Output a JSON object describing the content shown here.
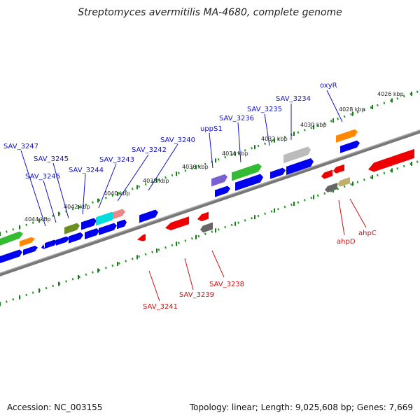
{
  "header": {
    "title": "Streptomyces avermitilis MA-4680, complete genome"
  },
  "footer": {
    "accession": "Accession: NC_003155",
    "summary": "Topology: linear; Length: 9,025,608 bp; Genes: 7,669"
  },
  "scale_labels": [
    "4026 kbp",
    "4028 kbp",
    "4030 kbp",
    "4032 kbp",
    "4034 kbp",
    "4036 kbp",
    "4038 kbp",
    "4040 kbp",
    "4042 kbp",
    "4044 kbp"
  ],
  "forward_gene_labels": [
    "SAV_3247",
    "SAV_3246",
    "SAV_3245",
    "SAV_3244",
    "SAV_3243",
    "SAV_3242",
    "SAV_3240",
    "uppS1",
    "SAV_3236",
    "SAV_3235",
    "SAV_3234",
    "oxyR"
  ],
  "reverse_gene_labels": [
    "SAV_3241",
    "SAV_3239",
    "SAV_3238",
    "ahpD",
    "ahpC"
  ],
  "colors": {
    "forward_cds": "#0000ee",
    "reverse_cds": "#ee0000",
    "backbone": "#888888",
    "tick": "#229922",
    "forward_label": "#1111cc",
    "reverse_label": "#cc1111"
  }
}
